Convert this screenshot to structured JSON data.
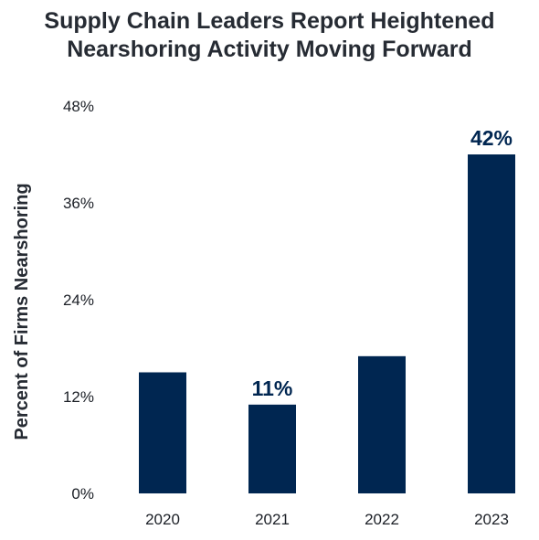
{
  "chart_data": {
    "type": "bar",
    "title_lines": [
      "Supply Chain Leaders Report Heightened",
      "Nearshoring Activity Moving Forward"
    ],
    "xlabel": "",
    "ylabel": "Percent of Firms Nearshoring",
    "categories": [
      "2020",
      "2021",
      "2022",
      "2023"
    ],
    "values": [
      15,
      11,
      17,
      42
    ],
    "data_labels": [
      "",
      "11%",
      "",
      "42%"
    ],
    "ylim": [
      0,
      48
    ],
    "yticks": [
      0,
      12,
      24,
      36,
      48
    ],
    "ytick_labels": [
      "0%",
      "12%",
      "24%",
      "36%",
      "48%"
    ],
    "grid": false,
    "legend": "none",
    "bar_color": "#002651"
  }
}
